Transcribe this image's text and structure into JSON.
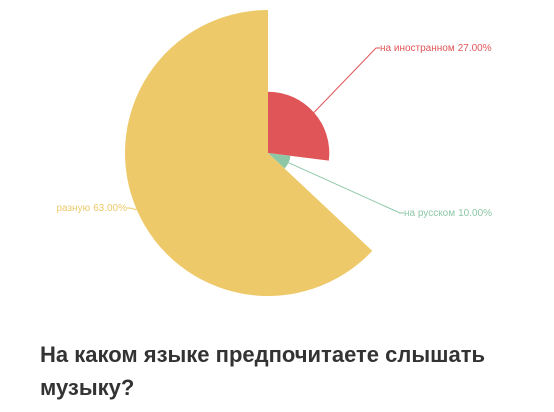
{
  "chart_data": {
    "type": "pie",
    "title": "На каком языке предпочитаете слышать музыку?",
    "categories": [
      "на иностранном",
      "на русском",
      "разную"
    ],
    "values": [
      27,
      10,
      63
    ],
    "value_labels": [
      "27.00%",
      "10.00%",
      "63.00%"
    ],
    "colors": [
      "#e05558",
      "#8dc7a6",
      "#eec96a"
    ]
  }
}
